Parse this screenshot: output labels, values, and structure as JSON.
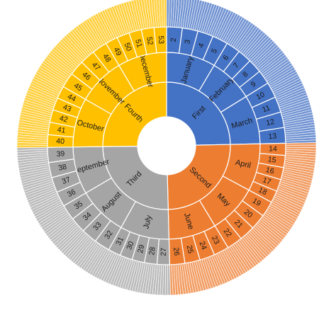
{
  "chart_data": {
    "type": "sunburst",
    "title": "",
    "levels": [
      "quarter",
      "month",
      "week",
      "day"
    ],
    "colors": {
      "First": "#4472C4",
      "Second": "#ED7D31",
      "Third": "#A5A5A5",
      "Fourth": "#FFC000"
    },
    "quarters": [
      {
        "label": "First",
        "months": [
          {
            "label": "January",
            "days": 31,
            "weeks": [
              "2",
              "3",
              "4",
              "5"
            ]
          },
          {
            "label": "February",
            "days": 28,
            "weeks": [
              "6",
              "7",
              "8",
              "9"
            ]
          },
          {
            "label": "March",
            "days": 31,
            "weeks": [
              "10",
              "11",
              "12",
              "13"
            ]
          }
        ]
      },
      {
        "label": "Second",
        "months": [
          {
            "label": "April",
            "days": 30,
            "weeks": [
              "14",
              "15",
              "16",
              "17",
              "18"
            ]
          },
          {
            "label": "May",
            "days": 31,
            "weeks": [
              "19",
              "20",
              "21",
              "22"
            ]
          },
          {
            "label": "June",
            "days": 30,
            "weeks": [
              "23",
              "24",
              "25",
              "26"
            ]
          }
        ]
      },
      {
        "label": "Third",
        "months": [
          {
            "label": "July",
            "days": 31,
            "weeks": [
              "27",
              "28",
              "29",
              "30",
              "31"
            ]
          },
          {
            "label": "August",
            "days": 31,
            "weeks": [
              "32",
              "33",
              "34",
              "35"
            ]
          },
          {
            "label": "September",
            "days": 30,
            "weeks": [
              "36",
              "37",
              "38",
              "39"
            ]
          }
        ]
      },
      {
        "label": "Fourth",
        "months": [
          {
            "label": "October",
            "days": 31,
            "weeks": [
              "40",
              "41",
              "42",
              "43",
              "44"
            ]
          },
          {
            "label": "November",
            "days": 30,
            "weeks": [
              "45",
              "46",
              "47",
              "48"
            ]
          },
          {
            "label": "December",
            "days": 31,
            "weeks": [
              "49",
              "50",
              "51",
              "52",
              "53"
            ]
          }
        ]
      }
    ]
  }
}
